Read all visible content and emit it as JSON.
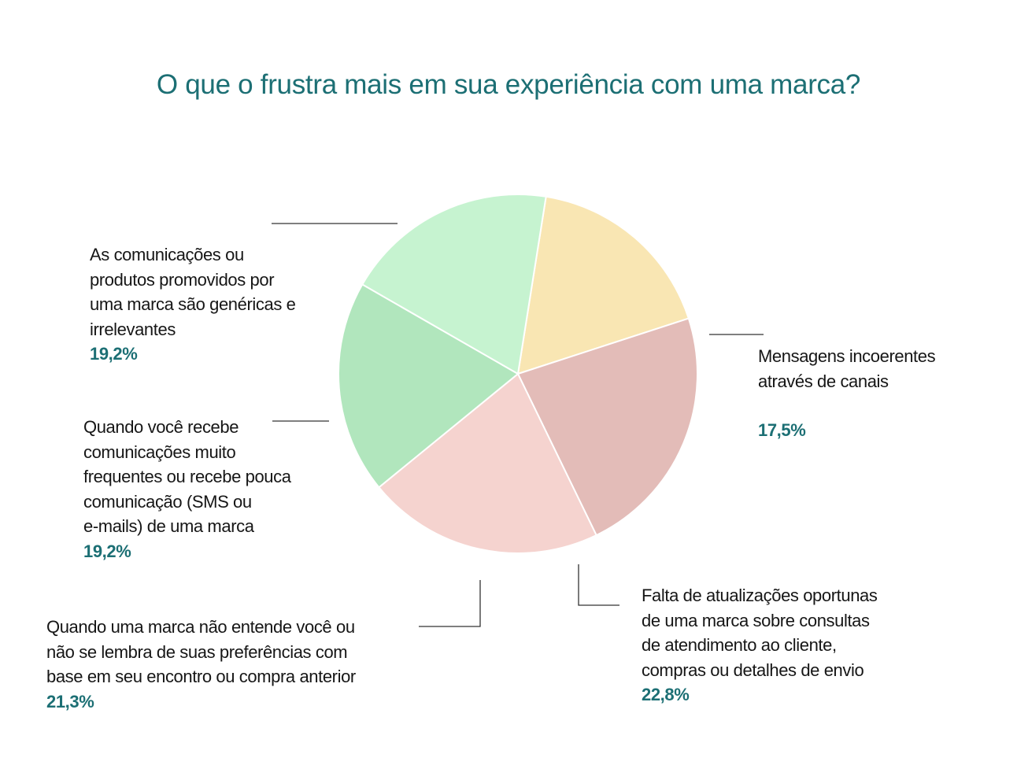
{
  "chart_data": {
    "type": "pie",
    "title": "O que o frustra mais em sua experiência com uma marca?",
    "slices": [
      {
        "label": "Mensagens incoerentes\natravés de canais",
        "value": 17.5,
        "value_label": "17,5%",
        "color": "#f9e6b3"
      },
      {
        "label": "Falta de atualizações oportunas\nde uma marca sobre consultas\nde atendimento ao cliente,\ncompras ou detalhes de envio",
        "value": 22.8,
        "value_label": "22,8%",
        "color": "#e3bcb8"
      },
      {
        "label": "Quando uma marca não entende você ou\nnão se lembra de suas preferências com\nbase em seu encontro ou compra anterior",
        "value": 21.3,
        "value_label": "21,3%",
        "color": "#f5d3cf"
      },
      {
        "label": "Quando você recebe\ncomunicações muito\nfrequentes ou recebe pouca\ncomunicação (SMS ou\ne-mails) de uma marca",
        "value": 19.2,
        "value_label": "19,2%",
        "color": "#b1e6bd"
      },
      {
        "label": "As comunicações ou\nprodutos promovidos por\numa marca são genéricas e\nirrelevantes",
        "value": 19.2,
        "value_label": "19,2%",
        "color": "#c6f3d0"
      }
    ]
  }
}
